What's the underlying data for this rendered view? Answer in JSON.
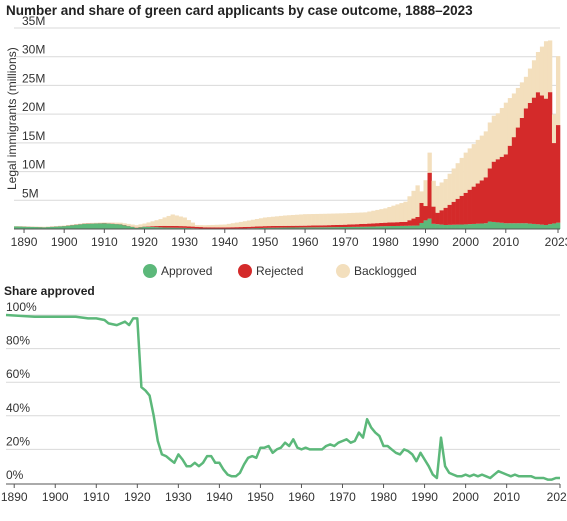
{
  "title": "Number and share of green card applicants by case outcome, 1888–2023",
  "chart_data": [
    {
      "type": "bar",
      "stacked": true,
      "title": "Number and share of green card applicants by case outcome, 1888–2023",
      "ylabel": "Legal immigrants (millions)",
      "xlabel": "",
      "ylim": [
        0,
        35
      ],
      "yticks": [
        "",
        "5M",
        "10M",
        "15M",
        "20M",
        "25M",
        "30M",
        "35M"
      ],
      "xticks": [
        "1890",
        "1900",
        "1910",
        "1920",
        "1930",
        "1940",
        "1950",
        "1960",
        "1970",
        "1980",
        "1990",
        "2000",
        "2010",
        "2023"
      ],
      "legend": [
        "Approved",
        "Rejected",
        "Backlogged"
      ],
      "legend_position": "bottom",
      "colors": {
        "approved": "#5cb87a",
        "rejected": "#d42a2a",
        "backlogged": "#f3dfbd"
      },
      "anchors": {
        "approved": [
          [
            1888,
            0.45
          ],
          [
            1895,
            0.3
          ],
          [
            1900,
            0.5
          ],
          [
            1905,
            0.9
          ],
          [
            1910,
            1.0
          ],
          [
            1914,
            0.8
          ],
          [
            1918,
            0.2
          ],
          [
            1920,
            0.4
          ],
          [
            1925,
            0.25
          ],
          [
            1930,
            0.2
          ],
          [
            1935,
            0.05
          ],
          [
            1940,
            0.08
          ],
          [
            1945,
            0.1
          ],
          [
            1950,
            0.2
          ],
          [
            1955,
            0.25
          ],
          [
            1960,
            0.28
          ],
          [
            1965,
            0.3
          ],
          [
            1970,
            0.35
          ],
          [
            1975,
            0.4
          ],
          [
            1980,
            0.5
          ],
          [
            1985,
            0.55
          ],
          [
            1988,
            0.6
          ],
          [
            1990,
            1.5
          ],
          [
            1991,
            1.8
          ],
          [
            1992,
            0.9
          ],
          [
            1995,
            0.7
          ],
          [
            2000,
            0.8
          ],
          [
            2005,
            1.0
          ],
          [
            2006,
            1.3
          ],
          [
            2010,
            1.0
          ],
          [
            2015,
            1.0
          ],
          [
            2020,
            0.7
          ],
          [
            2023,
            1.1
          ]
        ],
        "rejected": [
          [
            1888,
            0.02
          ],
          [
            1918,
            0.05
          ],
          [
            1920,
            0.05
          ],
          [
            1925,
            0.3
          ],
          [
            1930,
            0.3
          ],
          [
            1940,
            0.2
          ],
          [
            1950,
            0.3
          ],
          [
            1960,
            0.3
          ],
          [
            1970,
            0.4
          ],
          [
            1980,
            0.6
          ],
          [
            1985,
            0.7
          ],
          [
            1988,
            1.5
          ],
          [
            1989,
            3.5
          ],
          [
            1990,
            2.5
          ],
          [
            1991,
            8.0
          ],
          [
            1992,
            3.0
          ],
          [
            1993,
            2.0
          ],
          [
            1995,
            3.0
          ],
          [
            2000,
            5.5
          ],
          [
            2005,
            8.0
          ],
          [
            2007,
            10.5
          ],
          [
            2010,
            12.0
          ],
          [
            2012,
            15.0
          ],
          [
            2015,
            20.0
          ],
          [
            2018,
            23.0
          ],
          [
            2020,
            22.0
          ],
          [
            2021,
            23.0
          ],
          [
            2022,
            14.0
          ],
          [
            2023,
            17.0
          ]
        ],
        "backlogged": [
          [
            1888,
            0.05
          ],
          [
            1910,
            0.1
          ],
          [
            1920,
            0.5
          ],
          [
            1924,
            1.2
          ],
          [
            1927,
            2.0
          ],
          [
            1930,
            1.5
          ],
          [
            1933,
            0.3
          ],
          [
            1940,
            0.5
          ],
          [
            1945,
            1.0
          ],
          [
            1950,
            1.5
          ],
          [
            1955,
            1.8
          ],
          [
            1960,
            2.0
          ],
          [
            1965,
            2.0
          ],
          [
            1970,
            2.0
          ],
          [
            1975,
            2.0
          ],
          [
            1980,
            2.5
          ],
          [
            1985,
            3.5
          ],
          [
            1988,
            5.5
          ],
          [
            1989,
            2.0
          ],
          [
            1990,
            4.5
          ],
          [
            1991,
            3.5
          ],
          [
            1992,
            4.5
          ],
          [
            1995,
            5.0
          ],
          [
            2000,
            7.0
          ],
          [
            2005,
            8.0
          ],
          [
            2008,
            8.0
          ],
          [
            2010,
            9.0
          ],
          [
            2015,
            5.5
          ],
          [
            2018,
            7.0
          ],
          [
            2020,
            10.0
          ],
          [
            2021,
            9.0
          ],
          [
            2022,
            5.0
          ],
          [
            2023,
            12.0
          ]
        ]
      }
    },
    {
      "type": "line",
      "title": "Share approved",
      "ylim": [
        0,
        100
      ],
      "yticks": [
        "0%",
        "20%",
        "40%",
        "60%",
        "80%",
        "100%"
      ],
      "xticks": [
        "1890",
        "1900",
        "1910",
        "1920",
        "1930",
        "1940",
        "1950",
        "1960",
        "1970",
        "1980",
        "1990",
        "2000",
        "2010",
        "2023"
      ],
      "color": "#5cb87a",
      "series": [
        {
          "x": [
            1888,
            1895,
            1900,
            1905,
            1908,
            1910,
            1912,
            1913,
            1915,
            1917,
            1918,
            1919,
            1920,
            1921,
            1922,
            1923,
            1924,
            1925,
            1926,
            1927,
            1928,
            1929,
            1930,
            1931,
            1932,
            1933,
            1934,
            1935,
            1936,
            1937,
            1938,
            1939,
            1940,
            1941,
            1942,
            1943,
            1944,
            1945,
            1946,
            1947,
            1948,
            1949,
            1950,
            1951,
            1952,
            1953,
            1954,
            1955,
            1956,
            1957,
            1958,
            1959,
            1960,
            1961,
            1962,
            1963,
            1964,
            1965,
            1966,
            1967,
            1968,
            1969,
            1970,
            1971,
            1972,
            1973,
            1974,
            1975,
            1976,
            1977,
            1978,
            1979,
            1980,
            1981,
            1982,
            1983,
            1984,
            1985,
            1986,
            1987,
            1988,
            1989,
            1990,
            1991,
            1992,
            1993,
            1994,
            1995,
            1996,
            1997,
            1998,
            1999,
            2000,
            2001,
            2002,
            2003,
            2004,
            2005,
            2006,
            2007,
            2008,
            2009,
            2010,
            2011,
            2012,
            2013,
            2014,
            2015,
            2016,
            2017,
            2018,
            2019,
            2020,
            2021,
            2022,
            2023
          ],
          "y": [
            100,
            99,
            99,
            99,
            98,
            98,
            97,
            95,
            94,
            96,
            94,
            98,
            98,
            57,
            55,
            52,
            40,
            25,
            17,
            16,
            14,
            12,
            17,
            14,
            10,
            10,
            12,
            10,
            12,
            16,
            16,
            12,
            12,
            8,
            5,
            4,
            4,
            6,
            11,
            15,
            16,
            15,
            21,
            21,
            22,
            18,
            20,
            21,
            24,
            22,
            26,
            21,
            20,
            21,
            20,
            20,
            20,
            20,
            22,
            23,
            22,
            24,
            25,
            26,
            24,
            25,
            30,
            27,
            38,
            33,
            30,
            28,
            22,
            22,
            20,
            18,
            17,
            20,
            19,
            17,
            13,
            18,
            14,
            10,
            5,
            3,
            27,
            10,
            6,
            5,
            4,
            4,
            5,
            4,
            5,
            4,
            5,
            4,
            3,
            5,
            7,
            6,
            5,
            4,
            5,
            4,
            4,
            4,
            4,
            3,
            3,
            3,
            2,
            2,
            3,
            3
          ]
        }
      ]
    }
  ]
}
